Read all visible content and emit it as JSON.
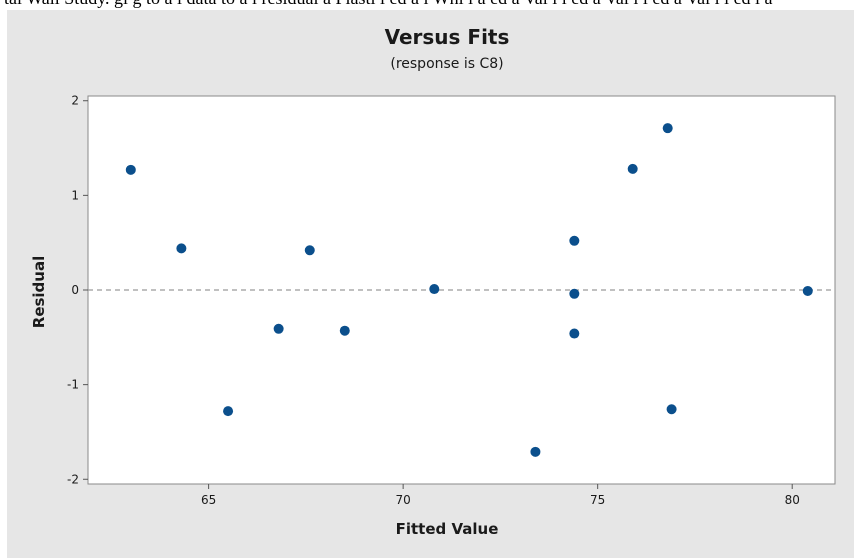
{
  "cropped_text": "tal Wall Study. gi g to a i data to a i residual a Plasti i ed a i Whi i a ed a Val i i ed a Val i i ed a Val i i ed i a",
  "chart_data": {
    "type": "scatter",
    "title": "Versus Fits",
    "subtitle": "(response is C8)",
    "xlabel": "Fitted Value",
    "ylabel": "Residual",
    "xlim": [
      61.9,
      81.1
    ],
    "ylim": [
      -2.05,
      2.05
    ],
    "xticks": [
      65,
      70,
      75,
      80
    ],
    "yticks": [
      -2,
      -1,
      0,
      1,
      2
    ],
    "reference_line": {
      "y": 0,
      "style": "dashed"
    },
    "grid": false,
    "marker_color": "#0b4f8c",
    "points": [
      {
        "x": 63.0,
        "y": 1.27
      },
      {
        "x": 64.3,
        "y": 0.44
      },
      {
        "x": 65.5,
        "y": -1.28
      },
      {
        "x": 66.8,
        "y": -0.41
      },
      {
        "x": 67.6,
        "y": 0.42
      },
      {
        "x": 68.5,
        "y": -0.43
      },
      {
        "x": 70.8,
        "y": 0.01
      },
      {
        "x": 73.4,
        "y": -1.71
      },
      {
        "x": 74.4,
        "y": 0.52
      },
      {
        "x": 74.4,
        "y": -0.04
      },
      {
        "x": 74.4,
        "y": -0.46
      },
      {
        "x": 75.9,
        "y": 1.28
      },
      {
        "x": 76.8,
        "y": 1.71
      },
      {
        "x": 76.9,
        "y": -1.26
      },
      {
        "x": 80.4,
        "y": -0.01
      }
    ]
  }
}
